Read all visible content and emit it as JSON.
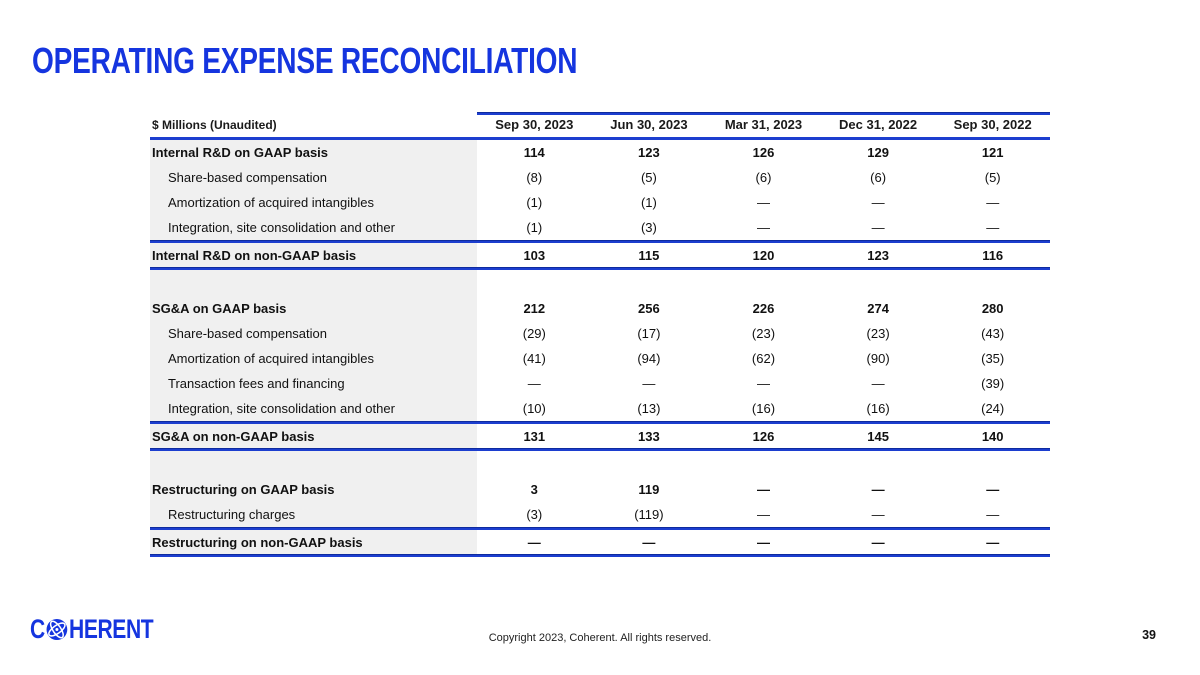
{
  "slide": {
    "title": "OPERATING EXPENSE RECONCILIATION",
    "footer": {
      "logo_text_left": "C",
      "logo_text_right": "HERENT",
      "copyright": "Copyright 2023, Coherent. All rights reserved.",
      "page_number": "39"
    }
  },
  "colors": {
    "brand_blue": "#1535DF",
    "rule_blue": "#1C3ECF",
    "label_column_bg": "#F0F0F0",
    "text": "#111111"
  },
  "table": {
    "unit_label": "$ Millions (Unaudited)",
    "columns": [
      "Sep 30, 2023",
      "Jun 30, 2023",
      "Mar 31, 2023",
      "Dec 31, 2022",
      "Sep 30, 2022"
    ],
    "sections": [
      {
        "rows": [
          {
            "label": "Internal R&D on GAAP basis",
            "bold": true,
            "values": [
              "114",
              "123",
              "126",
              "129",
              "121"
            ]
          },
          {
            "label": "Share-based compensation",
            "bold": false,
            "values": [
              "(8)",
              "(5)",
              "(6)",
              "(6)",
              "(5)"
            ]
          },
          {
            "label": "Amortization of acquired intangibles",
            "bold": false,
            "values": [
              "(1)",
              "(1)",
              "—",
              "—",
              "—"
            ]
          },
          {
            "label": "Integration, site consolidation and other",
            "bold": false,
            "values": [
              "(1)",
              "(3)",
              "—",
              "—",
              "—"
            ]
          }
        ],
        "total": {
          "label": "Internal R&D on non-GAAP basis",
          "values": [
            "103",
            "115",
            "120",
            "123",
            "116"
          ]
        }
      },
      {
        "rows": [
          {
            "label": "SG&A on GAAP basis",
            "bold": true,
            "values": [
              "212",
              "256",
              "226",
              "274",
              "280"
            ]
          },
          {
            "label": "Share-based compensation",
            "bold": false,
            "values": [
              "(29)",
              "(17)",
              "(23)",
              "(23)",
              "(43)"
            ]
          },
          {
            "label": "Amortization of acquired intangibles",
            "bold": false,
            "values": [
              "(41)",
              "(94)",
              "(62)",
              "(90)",
              "(35)"
            ]
          },
          {
            "label": "Transaction fees and financing",
            "bold": false,
            "values": [
              "—",
              "—",
              "—",
              "—",
              "(39)"
            ]
          },
          {
            "label": "Integration, site consolidation and other",
            "bold": false,
            "values": [
              "(10)",
              "(13)",
              "(16)",
              "(16)",
              "(24)"
            ]
          }
        ],
        "total": {
          "label": "SG&A on non-GAAP basis",
          "values": [
            "131",
            "133",
            "126",
            "145",
            "140"
          ]
        }
      },
      {
        "rows": [
          {
            "label": "Restructuring on GAAP basis",
            "bold": true,
            "values": [
              "3",
              "119",
              "—",
              "—",
              "—"
            ]
          },
          {
            "label": "Restructuring charges",
            "bold": false,
            "values": [
              "(3)",
              "(119)",
              "—",
              "—",
              "—"
            ]
          }
        ],
        "total": {
          "label": "Restructuring on non-GAAP basis",
          "values": [
            "—",
            "—",
            "—",
            "—",
            "—"
          ]
        }
      }
    ]
  }
}
